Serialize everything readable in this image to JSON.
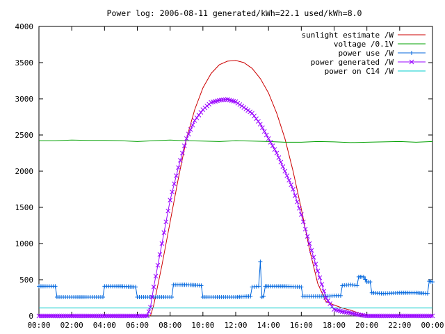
{
  "chart_data": {
    "type": "line",
    "title": "Power log: 2006-08-11 generated/kWh=22.1 used/kWh=8.0",
    "xlabel": "",
    "ylabel": "",
    "x_unit": "hours",
    "xlim": [
      0,
      24
    ],
    "ylim": [
      0,
      4000
    ],
    "xticks": [
      0,
      2,
      4,
      6,
      8,
      10,
      12,
      14,
      16,
      18,
      20,
      22,
      24
    ],
    "xtick_labels": [
      "00:00",
      "02:00",
      "04:00",
      "06:00",
      "08:00",
      "10:00",
      "12:00",
      "14:00",
      "16:00",
      "18:00",
      "20:00",
      "22:00",
      "00:00"
    ],
    "yticks": [
      0,
      500,
      1000,
      1500,
      2000,
      2500,
      3000,
      3500,
      4000
    ],
    "ytick_labels": [
      "0",
      "500",
      "1000",
      "1500",
      "2000",
      "2500",
      "3000",
      "3500",
      "4000"
    ],
    "grid": false,
    "legend_position": "top-right",
    "series": [
      {
        "name": "sunlight estimate /W",
        "color": "#cc0000",
        "marker": "none",
        "x": [
          6.8,
          7,
          7.5,
          8,
          8.5,
          9,
          9.5,
          10,
          10.5,
          11,
          11.5,
          12,
          12.5,
          13,
          13.5,
          14,
          14.5,
          15,
          15.5,
          16,
          16.5,
          17,
          17.5,
          18,
          18.5,
          19,
          19.5,
          20
        ],
        "y": [
          0,
          150,
          700,
          1300,
          1900,
          2450,
          2850,
          3150,
          3350,
          3470,
          3520,
          3530,
          3500,
          3420,
          3280,
          3080,
          2800,
          2450,
          2000,
          1480,
          920,
          450,
          200,
          150,
          110,
          80,
          40,
          0
        ]
      },
      {
        "name": "voltage /0.1V",
        "color": "#00a000",
        "marker": "none",
        "x": [
          0,
          1,
          2,
          3,
          4,
          5,
          6,
          7,
          8,
          9,
          10,
          11,
          12,
          13,
          14,
          15,
          16,
          17,
          18,
          19,
          20,
          21,
          22,
          23,
          24
        ],
        "y": [
          2420,
          2420,
          2430,
          2425,
          2425,
          2420,
          2410,
          2420,
          2430,
          2420,
          2415,
          2410,
          2420,
          2415,
          2410,
          2400,
          2400,
          2410,
          2405,
          2395,
          2400,
          2405,
          2410,
          2400,
          2410
        ]
      },
      {
        "name": "power use /W",
        "color": "#0066dd",
        "marker": "plus",
        "x": [
          0,
          1,
          1.1,
          2,
          3,
          3.9,
          4.0,
          5,
          5.9,
          6.0,
          7,
          8.1,
          8.2,
          9,
          9.9,
          10.0,
          11,
          12,
          12.9,
          13.0,
          13.4,
          13.5,
          13.6,
          13.7,
          13.8,
          13.9,
          14.0,
          15,
          16,
          16.1,
          17,
          17.5,
          18,
          18.4,
          18.5,
          19,
          19.4,
          19.5,
          19.7,
          19.8,
          20,
          20.2,
          20.3,
          21,
          22,
          23,
          23.7,
          23.8,
          24
        ],
        "y": [
          410,
          410,
          260,
          260,
          260,
          260,
          410,
          410,
          400,
          260,
          260,
          260,
          430,
          430,
          420,
          260,
          260,
          260,
          270,
          400,
          410,
          750,
          260,
          270,
          410,
          410,
          410,
          410,
          400,
          270,
          270,
          270,
          280,
          280,
          420,
          430,
          420,
          540,
          540,
          540,
          470,
          470,
          320,
          310,
          320,
          320,
          310,
          480,
          470
        ]
      },
      {
        "name": "power generated /W",
        "color": "#9900ff",
        "marker": "x",
        "x": [
          0,
          1,
          2,
          3,
          4,
          5,
          6,
          6.6,
          6.8,
          7,
          7.5,
          8,
          8.5,
          9,
          9.5,
          10,
          10.5,
          11,
          11.5,
          12,
          12.5,
          13,
          13.5,
          14,
          14.5,
          15,
          15.5,
          16,
          16.5,
          17,
          17.5,
          18,
          18.5,
          19,
          19.5,
          20,
          21,
          22,
          23,
          24
        ],
        "y": [
          0,
          0,
          0,
          0,
          0,
          0,
          0,
          0,
          120,
          400,
          1000,
          1600,
          2050,
          2450,
          2700,
          2850,
          2950,
          2980,
          2990,
          2960,
          2880,
          2800,
          2650,
          2450,
          2250,
          2000,
          1750,
          1400,
          1000,
          620,
          250,
          90,
          60,
          40,
          15,
          0,
          0,
          0,
          0,
          0
        ]
      },
      {
        "name": "power on C14 /W",
        "color": "#00cccc",
        "marker": "none",
        "x": [
          0,
          24
        ],
        "y": [
          110,
          110
        ]
      }
    ]
  }
}
